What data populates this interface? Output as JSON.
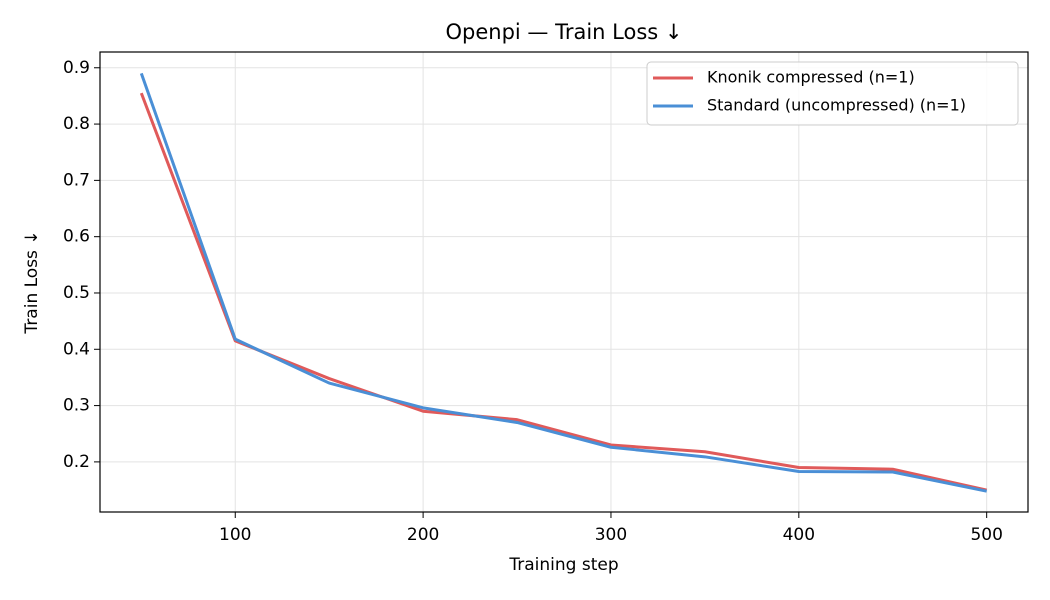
{
  "chart_data": {
    "type": "line",
    "title": "Openpi — Train Loss ↓",
    "x_label": "Training step",
    "y_label": "Train Loss ↓",
    "x": [
      50,
      100,
      150,
      200,
      250,
      300,
      350,
      400,
      450,
      500
    ],
    "series": [
      {
        "name": "Knonik compressed (n=1)",
        "color": "#e05a5a",
        "values": [
          0.855,
          0.415,
          0.348,
          0.29,
          0.275,
          0.23,
          0.218,
          0.19,
          0.187,
          0.15
        ]
      },
      {
        "name": "Standard (uncompressed) (n=1)",
        "color": "#4a8fd6",
        "values": [
          0.89,
          0.418,
          0.34,
          0.296,
          0.27,
          0.226,
          0.209,
          0.183,
          0.182,
          0.148
        ]
      }
    ],
    "xlim": [
      28,
      522
    ],
    "ylim": [
      0.111,
      0.928
    ],
    "xticks": [
      100,
      200,
      300,
      400,
      500
    ],
    "yticks": [
      0.2,
      0.3,
      0.4,
      0.5,
      0.6,
      0.7,
      0.8,
      0.9
    ],
    "grid": true,
    "legend": "upper right"
  }
}
